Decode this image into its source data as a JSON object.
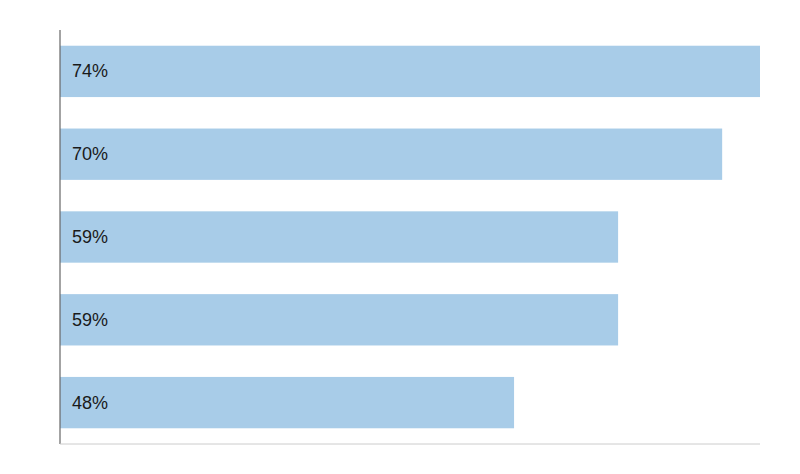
{
  "chart_data": {
    "type": "bar",
    "orientation": "horizontal",
    "categories": [
      null,
      null,
      null,
      null,
      null
    ],
    "values": [
      74,
      70,
      59,
      59,
      48
    ],
    "value_labels": [
      "74%",
      "70%",
      "59%",
      "59%",
      "48%"
    ],
    "data_labels": true,
    "color": "#a8cce8",
    "xlim": [
      0,
      74
    ],
    "tick_labels": false
  }
}
